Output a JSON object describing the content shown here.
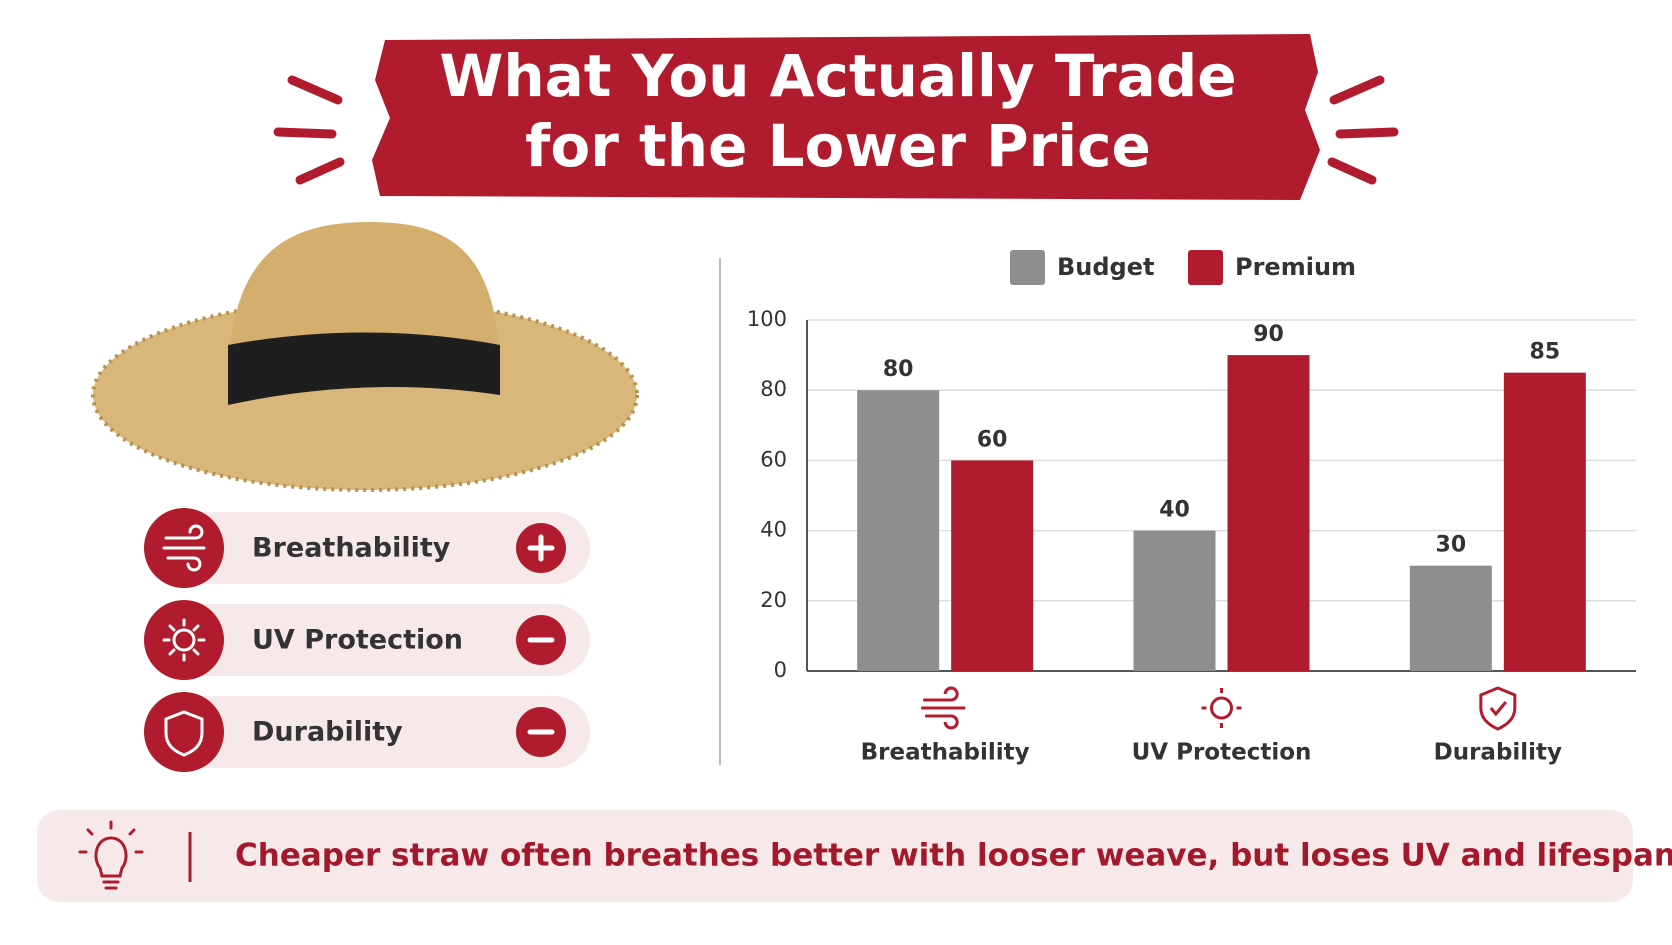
{
  "title": [
    "What You Actually Trade",
    "for the Lower Price"
  ],
  "features": [
    "Breathability",
    "UV Protection",
    "Durability"
  ],
  "chart_data": {
    "type": "bar",
    "categories": [
      "Breathability",
      "UV Protection",
      "Durability"
    ],
    "series": [
      {
        "name": "Budget",
        "color": "#8e8e8e",
        "values": [
          80,
          40,
          30
        ]
      },
      {
        "name": "Premium",
        "color": "#b01c2e",
        "values": [
          60,
          90,
          85
        ]
      }
    ],
    "ylim": [
      0,
      100
    ],
    "yticks": [
      0,
      20,
      40,
      60,
      80,
      100
    ],
    "grid": true,
    "legend": "top"
  },
  "footer": "Cheaper straw often breathes better with looser weave, but loses UV and lifespan."
}
